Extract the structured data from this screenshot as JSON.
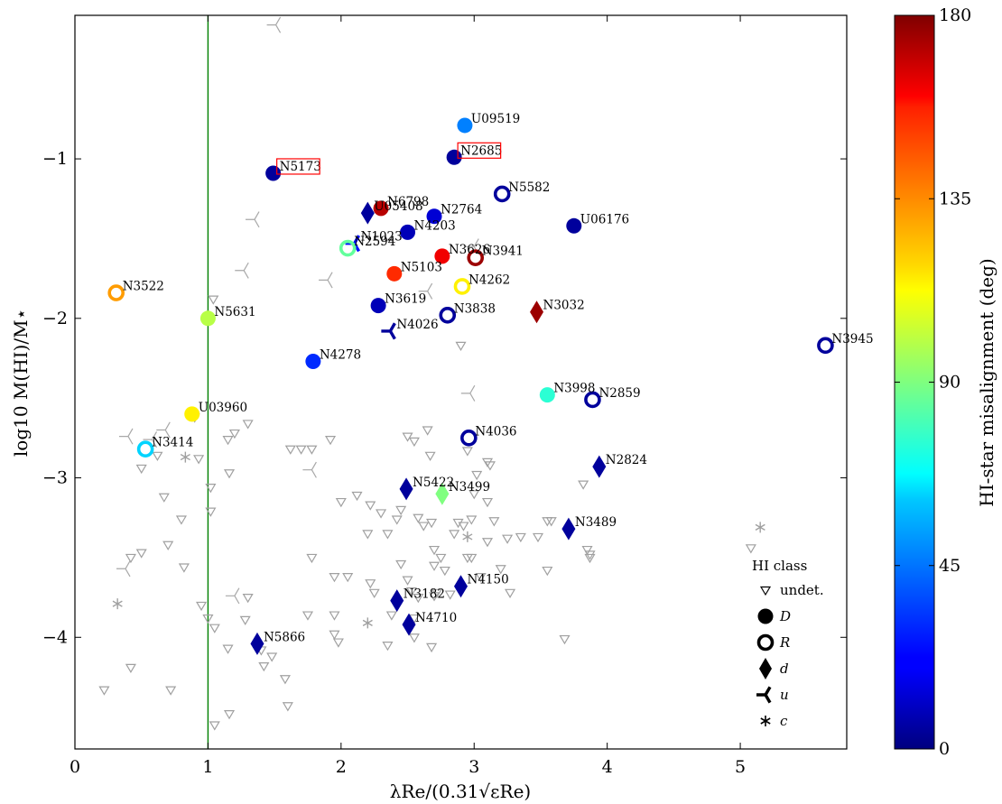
{
  "chart_data": {
    "type": "scatter",
    "xlabel": "λRe/(0.31√εRe)",
    "ylabel": "log10 M(HI)/M⋆",
    "xlim": [
      0,
      5.8
    ],
    "ylim": [
      -4.7,
      -0.1
    ],
    "xticks": [
      "0",
      "1",
      "2",
      "3",
      "4",
      "5"
    ],
    "yticks": [
      "−1",
      "−2",
      "−3",
      "−4"
    ],
    "vline_x": 1,
    "grid": false,
    "colorbar": {
      "label": "HI-star misalignment (deg)",
      "range": [
        0,
        180
      ],
      "ticks": [
        "0",
        "45",
        "90",
        "135",
        "180"
      ]
    },
    "legend": {
      "title": "HI class",
      "placement": "lower-right",
      "entries": [
        {
          "marker": "triangle",
          "label": "undet."
        },
        {
          "marker": "circle",
          "label": "D"
        },
        {
          "marker": "ring",
          "label": "R"
        },
        {
          "marker": "diamond",
          "label": "d"
        },
        {
          "marker": "tri",
          "label": "u"
        },
        {
          "marker": "star",
          "label": "c"
        }
      ]
    },
    "boxed_labels": [
      "N5173",
      "N2685"
    ],
    "points": [
      {
        "name": "U09519",
        "x": 2.93,
        "y": -0.79,
        "class": "D",
        "angle": 45
      },
      {
        "name": "N2685",
        "x": 2.85,
        "y": -0.99,
        "class": "D",
        "angle": 5
      },
      {
        "name": "N5173",
        "x": 1.49,
        "y": -1.09,
        "class": "D",
        "angle": 5
      },
      {
        "name": "N5582",
        "x": 3.21,
        "y": -1.22,
        "class": "R",
        "angle": 5
      },
      {
        "name": "U05408",
        "x": 2.2,
        "y": -1.34,
        "class": "d",
        "angle": 5
      },
      {
        "name": "N6798",
        "x": 2.3,
        "y": -1.31,
        "class": "D",
        "angle": 170
      },
      {
        "name": "N2764",
        "x": 2.7,
        "y": -1.36,
        "class": "D",
        "angle": 15
      },
      {
        "name": "U06176",
        "x": 3.75,
        "y": -1.42,
        "class": "D",
        "angle": 5
      },
      {
        "name": "N4203",
        "x": 2.5,
        "y": -1.46,
        "class": "D",
        "angle": 10
      },
      {
        "name": "N1023",
        "x": 2.1,
        "y": -1.53,
        "class": "u",
        "angle": 25
      },
      {
        "name": "N2594",
        "x": 2.05,
        "y": -1.56,
        "class": "R",
        "angle": 85
      },
      {
        "name": "N3626",
        "x": 2.76,
        "y": -1.61,
        "class": "D",
        "angle": 160
      },
      {
        "name": "N3941",
        "x": 3.01,
        "y": -1.62,
        "class": "R",
        "angle": 175
      },
      {
        "name": "N5103",
        "x": 2.4,
        "y": -1.72,
        "class": "D",
        "angle": 150
      },
      {
        "name": "N3522",
        "x": 0.31,
        "y": -1.84,
        "class": "R",
        "angle": 130
      },
      {
        "name": "N4262",
        "x": 2.91,
        "y": -1.8,
        "class": "R",
        "angle": 115
      },
      {
        "name": "N5631",
        "x": 1.0,
        "y": -2.0,
        "class": "D",
        "angle": 100
      },
      {
        "name": "N3619",
        "x": 2.28,
        "y": -1.92,
        "class": "D",
        "angle": 10
      },
      {
        "name": "N3838",
        "x": 2.8,
        "y": -1.98,
        "class": "R",
        "angle": 5
      },
      {
        "name": "N3032",
        "x": 3.47,
        "y": -1.96,
        "class": "d",
        "angle": 175
      },
      {
        "name": "N4026",
        "x": 2.37,
        "y": -2.08,
        "class": "u",
        "angle": 5
      },
      {
        "name": "N3945",
        "x": 5.64,
        "y": -2.17,
        "class": "R",
        "angle": 5
      },
      {
        "name": "N4278",
        "x": 1.79,
        "y": -2.27,
        "class": "D",
        "angle": 30
      },
      {
        "name": "N3998",
        "x": 3.55,
        "y": -2.48,
        "class": "D",
        "angle": 75
      },
      {
        "name": "N2859",
        "x": 3.89,
        "y": -2.51,
        "class": "R",
        "angle": 5
      },
      {
        "name": "U03960",
        "x": 0.88,
        "y": -2.6,
        "class": "D",
        "angle": 115
      },
      {
        "name": "N4036",
        "x": 2.96,
        "y": -2.75,
        "class": "R",
        "angle": 5
      },
      {
        "name": "N3414",
        "x": 0.53,
        "y": -2.82,
        "class": "R",
        "angle": 60
      },
      {
        "name": "N2824",
        "x": 3.94,
        "y": -2.93,
        "class": "d",
        "angle": 5
      },
      {
        "name": "N5422",
        "x": 2.49,
        "y": -3.07,
        "class": "d",
        "angle": 5
      },
      {
        "name": "N3499",
        "x": 2.76,
        "y": -3.1,
        "class": "d",
        "angle": 90
      },
      {
        "name": "N3489",
        "x": 3.71,
        "y": -3.32,
        "class": "d",
        "angle": 5
      },
      {
        "name": "N4150",
        "x": 2.9,
        "y": -3.68,
        "class": "d",
        "angle": 5
      },
      {
        "name": "N3182",
        "x": 2.42,
        "y": -3.77,
        "class": "d",
        "angle": 5
      },
      {
        "name": "N4710",
        "x": 2.51,
        "y": -3.92,
        "class": "d",
        "angle": 5
      },
      {
        "name": "N5866",
        "x": 1.37,
        "y": -4.04,
        "class": "d",
        "angle": 5
      }
    ],
    "gray_tri": [
      [
        1.51,
        -0.16
      ],
      [
        1.35,
        -1.38
      ],
      [
        1.27,
        -1.7
      ],
      [
        1.9,
        -1.76
      ],
      [
        2.65,
        -1.83
      ],
      [
        3.0,
        -1.55
      ],
      [
        2.97,
        -2.47
      ],
      [
        0.58,
        -2.76
      ],
      [
        0.68,
        -2.7
      ],
      [
        0.4,
        -2.74
      ],
      [
        1.78,
        -2.95
      ],
      [
        0.38,
        -3.57
      ],
      [
        1.2,
        -3.74
      ]
    ],
    "gray_star": [
      [
        0.32,
        -3.79
      ],
      [
        0.83,
        -2.87
      ],
      [
        2.95,
        -3.37
      ],
      [
        2.2,
        -3.91
      ],
      [
        5.15,
        -3.31
      ]
    ],
    "gray_undet": [
      [
        0.22,
        -4.33
      ],
      [
        0.42,
        -4.19
      ],
      [
        0.72,
        -4.33
      ],
      [
        0.5,
        -3.47
      ],
      [
        0.42,
        -3.5
      ],
      [
        0.5,
        -2.94
      ],
      [
        0.62,
        -2.86
      ],
      [
        0.67,
        -3.12
      ],
      [
        0.8,
        -3.26
      ],
      [
        0.7,
        -3.42
      ],
      [
        0.82,
        -3.56
      ],
      [
        0.95,
        -3.8
      ],
      [
        1.05,
        -3.94
      ],
      [
        1.15,
        -4.07
      ],
      [
        1.02,
        -3.21
      ],
      [
        1.02,
        -3.06
      ],
      [
        0.93,
        -2.88
      ],
      [
        1.04,
        -1.88
      ],
      [
        1.15,
        -2.76
      ],
      [
        1.2,
        -2.72
      ],
      [
        1.3,
        -2.66
      ],
      [
        1.16,
        -2.97
      ],
      [
        1.28,
        -3.89
      ],
      [
        1.4,
        -4.08
      ],
      [
        1.42,
        -4.18
      ],
      [
        1.48,
        -4.12
      ],
      [
        1.58,
        -4.26
      ],
      [
        1.6,
        -4.43
      ],
      [
        1.62,
        -2.82
      ],
      [
        1.7,
        -2.82
      ],
      [
        1.78,
        -2.82
      ],
      [
        1.78,
        -3.5
      ],
      [
        1.92,
        -2.76
      ],
      [
        1.95,
        -3.62
      ],
      [
        1.95,
        -3.86
      ],
      [
        1.95,
        -3.98
      ],
      [
        1.98,
        -4.03
      ],
      [
        1.75,
        -3.86
      ],
      [
        2.0,
        -3.15
      ],
      [
        2.12,
        -3.11
      ],
      [
        2.22,
        -3.17
      ],
      [
        2.22,
        -3.66
      ],
      [
        2.25,
        -3.72
      ],
      [
        2.3,
        -3.22
      ],
      [
        2.35,
        -3.35
      ],
      [
        2.38,
        -3.86
      ],
      [
        2.42,
        -3.26
      ],
      [
        2.45,
        -3.54
      ],
      [
        2.5,
        -3.64
      ],
      [
        2.53,
        -3.71
      ],
      [
        2.55,
        -3.88
      ],
      [
        2.58,
        -3.75
      ],
      [
        2.5,
        -2.74
      ],
      [
        2.55,
        -2.77
      ],
      [
        2.65,
        -2.7
      ],
      [
        2.67,
        -2.86
      ],
      [
        2.45,
        -3.2
      ],
      [
        2.58,
        -3.25
      ],
      [
        2.68,
        -3.28
      ],
      [
        2.7,
        -3.45
      ],
      [
        2.75,
        -3.5
      ],
      [
        2.7,
        -3.74
      ],
      [
        2.78,
        -3.58
      ],
      [
        2.82,
        -3.73
      ],
      [
        2.85,
        -3.35
      ],
      [
        2.88,
        -3.28
      ],
      [
        2.92,
        -3.3
      ],
      [
        2.98,
        -3.26
      ],
      [
        3.02,
        -2.98
      ],
      [
        3.1,
        -2.9
      ],
      [
        3.12,
        -2.92
      ],
      [
        3.1,
        -3.15
      ],
      [
        3.15,
        -3.27
      ],
      [
        3.1,
        -3.4
      ],
      [
        2.95,
        -3.5
      ],
      [
        3.05,
        -3.62
      ],
      [
        3.2,
        -3.57
      ],
      [
        3.25,
        -3.38
      ],
      [
        3.35,
        -3.37
      ],
      [
        3.48,
        -3.37
      ],
      [
        3.55,
        -3.58
      ],
      [
        3.58,
        -3.27
      ],
      [
        3.68,
        -4.01
      ],
      [
        3.87,
        -3.48
      ],
      [
        3.87,
        -3.5
      ],
      [
        3.55,
        -3.27
      ],
      [
        3.82,
        -3.04
      ],
      [
        3.85,
        -3.45
      ],
      [
        2.9,
        -2.17
      ],
      [
        2.95,
        -2.83
      ],
      [
        2.35,
        -4.05
      ],
      [
        2.68,
        -4.06
      ],
      [
        2.05,
        -3.62
      ],
      [
        1.3,
        -3.75
      ],
      [
        3.0,
        -3.1
      ],
      [
        5.08,
        -3.44
      ],
      [
        1.05,
        -4.55
      ],
      [
        1.16,
        -4.48
      ],
      [
        2.72,
        -3.72
      ],
      [
        0.9,
        -2.62
      ],
      [
        2.98,
        -3.5
      ],
      [
        2.2,
        -3.35
      ],
      [
        2.7,
        -3.55
      ],
      [
        2.55,
        -4.0
      ],
      [
        1.0,
        -3.88
      ],
      [
        3.27,
        -3.72
      ],
      [
        2.62,
        -3.3
      ]
    ]
  }
}
